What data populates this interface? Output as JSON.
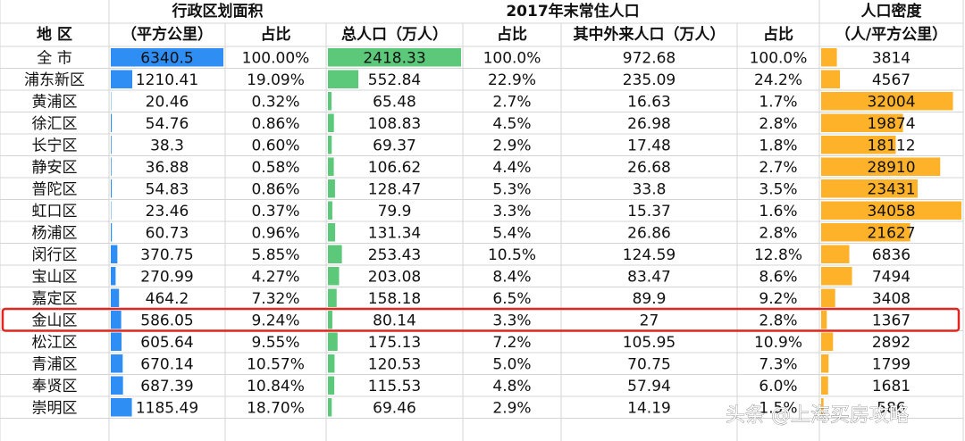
{
  "header": {
    "group_row": [
      "行政区划面积",
      "2017年末常住人口",
      "人口密度"
    ],
    "column_row": [
      "地 区",
      "（平方公里）",
      "占比",
      "总人口（万人）",
      "占比",
      "其中外来人口（万人）",
      "占比",
      "（人/平方公里）"
    ]
  },
  "table": {
    "rows": [
      [
        "全 市",
        "6340.5",
        "100.00%",
        "2418.33",
        "100.0%",
        "972.68",
        "100.0%",
        "3814"
      ],
      [
        "浦东新区",
        "1210.41",
        "19.09%",
        "552.84",
        "22.9%",
        "235.09",
        "24.2%",
        "4567"
      ],
      [
        "黄浦区",
        "20.46",
        "0.32%",
        "65.48",
        "2.7%",
        "16.63",
        "1.7%",
        "32004"
      ],
      [
        "徐汇区",
        "54.76",
        "0.86%",
        "108.83",
        "4.5%",
        "26.98",
        "2.8%",
        "19874"
      ],
      [
        "长宁区",
        "38.3",
        "0.60%",
        "69.37",
        "2.9%",
        "17.48",
        "1.8%",
        "18112"
      ],
      [
        "静安区",
        "36.88",
        "0.58%",
        "106.62",
        "4.4%",
        "26.68",
        "2.7%",
        "28910"
      ],
      [
        "普陀区",
        "54.83",
        "0.86%",
        "128.47",
        "5.3%",
        "33.8",
        "3.5%",
        "23431"
      ],
      [
        "虹口区",
        "23.46",
        "0.37%",
        "79.9",
        "3.3%",
        "15.37",
        "1.6%",
        "34058"
      ],
      [
        "杨浦区",
        "60.73",
        "0.96%",
        "131.34",
        "5.4%",
        "26.86",
        "2.8%",
        "21627"
      ],
      [
        "闵行区",
        "370.75",
        "5.85%",
        "253.43",
        "10.5%",
        "124.59",
        "12.8%",
        "6836"
      ],
      [
        "宝山区",
        "270.99",
        "4.27%",
        "203.08",
        "8.4%",
        "83.47",
        "8.6%",
        "7494"
      ],
      [
        "嘉定区",
        "464.2",
        "7.32%",
        "158.18",
        "6.5%",
        "89.9",
        "9.2%",
        "3408"
      ],
      [
        "金山区",
        "586.05",
        "9.24%",
        "80.14",
        "3.3%",
        "27",
        "2.8%",
        "1367"
      ],
      [
        "松江区",
        "605.64",
        "9.55%",
        "175.13",
        "7.2%",
        "105.95",
        "10.9%",
        "2892"
      ],
      [
        "青浦区",
        "670.14",
        "10.57%",
        "120.53",
        "5.0%",
        "70.75",
        "7.3%",
        "1799"
      ],
      [
        "奉贤区",
        "687.39",
        "10.84%",
        "115.53",
        "4.8%",
        "57.94",
        "6.0%",
        "1681"
      ],
      [
        "崇明区",
        "1185.49",
        "18.70%",
        "69.46",
        "2.9%",
        "14.19",
        "1.5%",
        "586"
      ]
    ]
  },
  "watermark": "头条 @上海买房攻略"
}
